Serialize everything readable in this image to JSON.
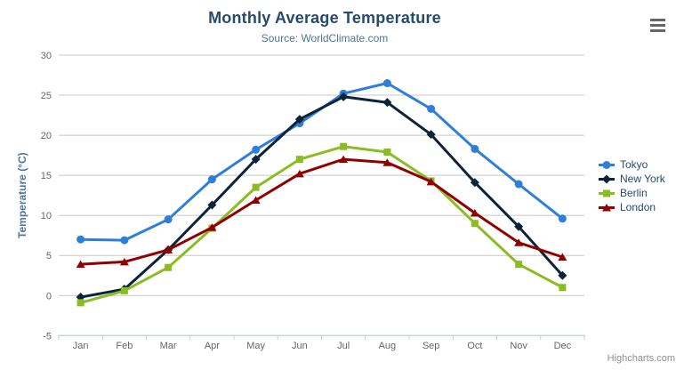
{
  "chart_data": {
    "type": "line",
    "title": "Monthly Average Temperature",
    "subtitle": "Source: WorldClimate.com",
    "categories": [
      "Jan",
      "Feb",
      "Mar",
      "Apr",
      "May",
      "Jun",
      "Jul",
      "Aug",
      "Sep",
      "Oct",
      "Nov",
      "Dec"
    ],
    "xlabel": "",
    "ylabel": "Temperature (°C)",
    "ylim": [
      -5,
      30
    ],
    "ytick_step": 5,
    "grid": true,
    "legend_position": "right",
    "series": [
      {
        "name": "Tokyo",
        "color": "#2f7ed8",
        "marker": "circle",
        "values": [
          7.0,
          6.9,
          9.5,
          14.5,
          18.2,
          21.5,
          25.2,
          26.5,
          23.3,
          18.3,
          13.9,
          9.6
        ]
      },
      {
        "name": "New York",
        "color": "#0d233a",
        "marker": "diamond",
        "values": [
          -0.2,
          0.8,
          5.7,
          11.3,
          17.0,
          22.0,
          24.8,
          24.1,
          20.1,
          14.1,
          8.6,
          2.5
        ]
      },
      {
        "name": "Berlin",
        "color": "#8bbc21",
        "marker": "square",
        "values": [
          -0.9,
          0.6,
          3.5,
          8.4,
          13.5,
          17.0,
          18.6,
          17.9,
          14.3,
          9.0,
          3.9,
          1.0
        ]
      },
      {
        "name": "London",
        "color": "#910000",
        "marker": "triangle",
        "values": [
          3.9,
          4.2,
          5.7,
          8.5,
          11.9,
          15.2,
          17.0,
          16.6,
          14.2,
          10.3,
          6.6,
          4.8
        ]
      }
    ]
  },
  "credits": {
    "label": "Highcharts.com"
  },
  "icons": {
    "context_menu": "hamburger-menu-icon"
  },
  "colors": {
    "title": "#274b6d",
    "subtitle": "#4d759e",
    "axis_title": "#4d759e",
    "axis_label": "#666666",
    "legend_text": "#274b6d",
    "grid_line": "#c8c8c8",
    "axis_line": "#c0d0e0",
    "credits": "#909090",
    "menu_icon": "#666666"
  }
}
